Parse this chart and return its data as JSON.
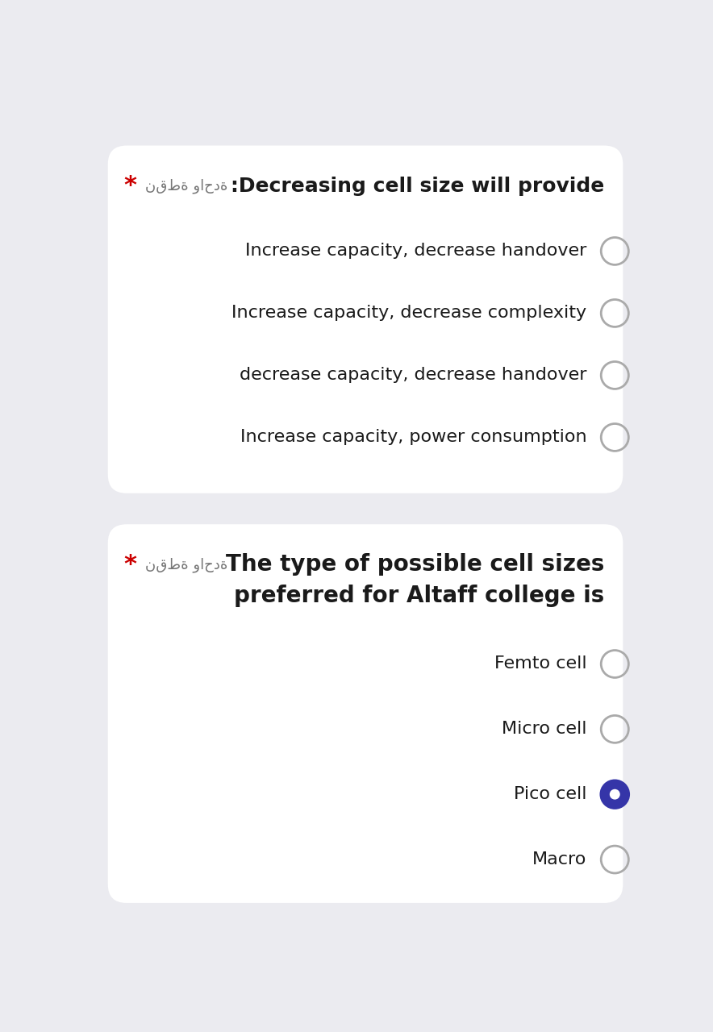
{
  "bg_color": "#ebebf0",
  "card_color": "#ffffff",
  "q1_arabic": "نقطة واحدة",
  "q1_title": ":Decreasing cell size will provide",
  "q1_options": [
    "Increase capacity, decrease handover",
    "Increase capacity, decrease complexity",
    "decrease capacity, decrease handover",
    "Increase capacity, power consumption"
  ],
  "q1_selected": -1,
  "q2_arabic": "نقطة واحدة",
  "q2_title_line1": "The type of possible cell sizes",
  "q2_title_line2": "preferred for Altaff college is",
  "q2_options": [
    "Femto cell",
    "Micro cell",
    "Pico cell",
    "Macro"
  ],
  "q2_selected": 2,
  "star_color": "#cc0000",
  "text_color": "#1a1a1a",
  "arabic_color": "#777777",
  "radio_empty_edge": "#aaaaaa",
  "radio_selected_fill": "#3535a8",
  "radio_selected_edge": "#3535a8",
  "separator_color": "#d0d0d8"
}
